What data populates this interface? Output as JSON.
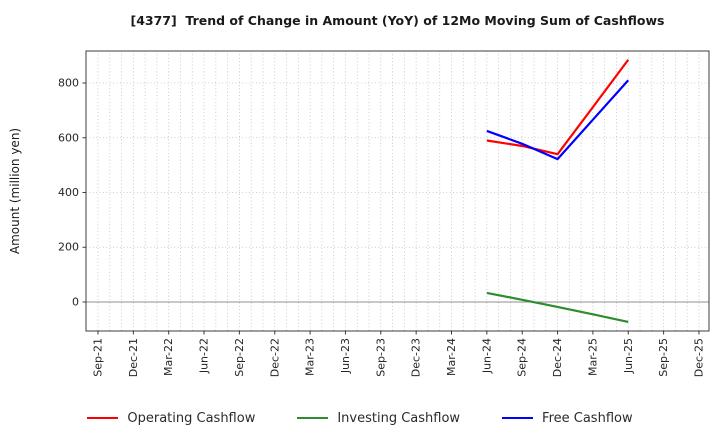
{
  "chart_data": {
    "type": "line",
    "title": "[4377]  Trend of Change in Amount (YoY) of 12Mo Moving Sum of Cashflows",
    "ylabel": "Amount (million yen)",
    "categories": [
      "Sep-21",
      "Dec-21",
      "Mar-22",
      "Jun-22",
      "Sep-22",
      "Dec-22",
      "Mar-23",
      "Jun-23",
      "Sep-23",
      "Dec-23",
      "Mar-24",
      "Jun-24",
      "Sep-24",
      "Dec-24",
      "Mar-25",
      "Jun-25",
      "Sep-25",
      "Dec-25"
    ],
    "yticks": [
      0,
      200,
      400,
      600,
      800
    ],
    "ylim": [
      -106,
      917
    ],
    "grid": "dotted major+minor, minor x gridlines monthly",
    "legend_position": "bottom",
    "colors": {
      "operating": "#ff0000",
      "investing": "#2e8b2e",
      "free": "#0000ff",
      "gridline": "#b0b0b0",
      "zero_line": "#8f8f8f",
      "spine": "#3c3c3c",
      "text": "#262626"
    },
    "series": [
      {
        "name": "Operating Cashflow",
        "color": "#ff0000",
        "points": [
          {
            "x": "Jun-24",
            "y": 590
          },
          {
            "x": "Sep-24",
            "y": 570
          },
          {
            "x": "Dec-24",
            "y": 540
          },
          {
            "x": "Mar-25",
            "y": 712
          },
          {
            "x": "Jun-25",
            "y": 885
          }
        ]
      },
      {
        "name": "Investing Cashflow",
        "color": "#2e8b2e",
        "points": [
          {
            "x": "Jun-24",
            "y": 33
          },
          {
            "x": "Sep-24",
            "y": 8
          },
          {
            "x": "Dec-24",
            "y": -18
          },
          {
            "x": "Mar-25",
            "y": -45
          },
          {
            "x": "Jun-25",
            "y": -73
          }
        ]
      },
      {
        "name": "Free Cashflow",
        "color": "#0000ff",
        "points": [
          {
            "x": "Jun-24",
            "y": 625
          },
          {
            "x": "Sep-24",
            "y": 578
          },
          {
            "x": "Dec-24",
            "y": 522
          },
          {
            "x": "Mar-25",
            "y": 666
          },
          {
            "x": "Jun-25",
            "y": 810
          }
        ]
      }
    ]
  }
}
